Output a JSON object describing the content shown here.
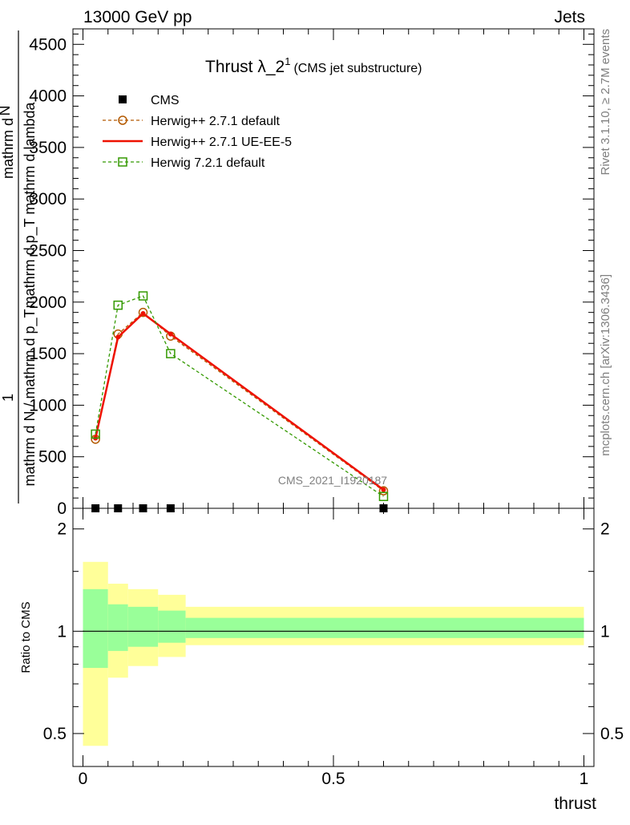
{
  "header": {
    "left": "13000 GeV pp",
    "right": "Jets"
  },
  "side_labels": {
    "top": "Rivet 3.1.10, ≥ 2.7M events",
    "bottom": "mcplots.cern.ch [arXiv:1306.3436]"
  },
  "watermark": "CMS_2021_I1920187",
  "colors": {
    "cms": "#000000",
    "herwig_default": "#b35900",
    "herwig_ueee5": "#ee1100",
    "herwig721": "#339900",
    "band_outer": "#ffff99",
    "band_inner": "#99ff99"
  },
  "chart_data": [
    {
      "type": "line",
      "title_main": "Thrust λ_2",
      "title_sup": "1",
      "title_sub": "(CMS jet substructure)",
      "ylabel_lines": [
        "1",
        "mathrm d N / mathrm d p_T",
        "mathrm d p_T mathrm d lambda",
        "mathrm d",
        "N"
      ],
      "ylim": [
        0,
        4650
      ],
      "xlim": [
        -0.02,
        1.02
      ],
      "yticks": [
        0,
        500,
        1000,
        1500,
        2000,
        2500,
        3000,
        3500,
        4000,
        4500
      ],
      "ytick_labels": [
        "0",
        "500",
        "1000",
        "1500",
        "2000",
        "2500",
        "3000",
        "3500",
        "4000",
        "4500"
      ],
      "legend_position": "top-left",
      "series": [
        {
          "name": "CMS",
          "style": "markers",
          "x": [
            0.025,
            0.07,
            0.12,
            0.175,
            0.6
          ],
          "y": [
            0,
            0,
            0,
            0,
            0
          ]
        },
        {
          "name": "Herwig++ 2.7.1 default",
          "style": "dashed-circle",
          "x": [
            0.025,
            0.07,
            0.12,
            0.175,
            0.6
          ],
          "y": [
            670,
            1690,
            1900,
            1670,
            170
          ]
        },
        {
          "name": "Herwig++ 2.7.1 UE-EE-5",
          "style": "solid",
          "x": [
            0.025,
            0.07,
            0.12,
            0.175,
            0.6
          ],
          "y": [
            680,
            1660,
            1890,
            1690,
            180
          ]
        },
        {
          "name": "Herwig 7.2.1 default",
          "style": "dashed-square",
          "x": [
            0.025,
            0.07,
            0.12,
            0.175,
            0.6
          ],
          "y": [
            720,
            1970,
            2060,
            1500,
            115
          ]
        }
      ]
    },
    {
      "type": "area",
      "ylabel": "Ratio to CMS",
      "xlabel": "thrust",
      "xlim": [
        -0.02,
        1.02
      ],
      "ylim": [
        0.4,
        2.3
      ],
      "log_y": true,
      "xticks": [
        0,
        0.5,
        1
      ],
      "xtick_labels": [
        "0",
        "0.5",
        "1"
      ],
      "yticks": [
        0.5,
        1,
        2
      ],
      "ytick_labels": [
        "0.5",
        "1",
        "2"
      ],
      "reference_line": 1,
      "bins": [
        {
          "x0": 0.0,
          "x1": 0.05,
          "outer": [
            0.46,
            1.6
          ],
          "inner": [
            0.78,
            1.33
          ]
        },
        {
          "x0": 0.05,
          "x1": 0.09,
          "outer": [
            0.73,
            1.38
          ],
          "inner": [
            0.875,
            1.2
          ]
        },
        {
          "x0": 0.09,
          "x1": 0.15,
          "outer": [
            0.79,
            1.33
          ],
          "inner": [
            0.9,
            1.18
          ]
        },
        {
          "x0": 0.15,
          "x1": 0.205,
          "outer": [
            0.84,
            1.28
          ],
          "inner": [
            0.925,
            1.15
          ]
        },
        {
          "x0": 0.205,
          "x1": 1.0,
          "outer": [
            0.91,
            1.18
          ],
          "inner": [
            0.955,
            1.095
          ]
        }
      ]
    }
  ]
}
